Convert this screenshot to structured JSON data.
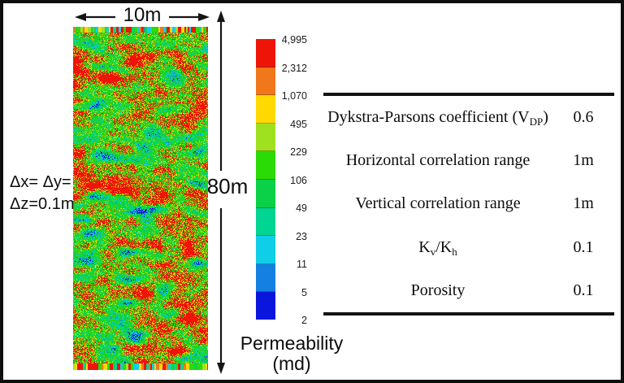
{
  "figure": {
    "width_label": "10m",
    "height_label": "80m",
    "cell_size_lines": [
      "Δx= Δy=",
      "Δz=0.1m"
    ],
    "colorbar": {
      "title_lines": [
        "Permeability",
        "(md)"
      ],
      "ticks": [
        "4,995",
        "2,312",
        "1,070",
        "495",
        "229",
        "106",
        "49",
        "23",
        "11",
        "5",
        "2"
      ],
      "segments": [
        "#ee1408",
        "#f1781a",
        "#ffd900",
        "#9fe11e",
        "#2bdb06",
        "#0bd148",
        "#00d592",
        "#0fcfe8",
        "#1480e2",
        "#0a16dd"
      ]
    },
    "table": {
      "rows": [
        {
          "parts": [
            {
              "t": "Dykstra-Parsons coefficient (V"
            },
            {
              "s": "DP"
            },
            {
              "t": ")"
            }
          ],
          "value": "0.6"
        },
        {
          "parts": [
            {
              "t": "Horizontal correlation range"
            }
          ],
          "value": "1m"
        },
        {
          "parts": [
            {
              "t": "Vertical correlation range"
            }
          ],
          "value": "1m"
        },
        {
          "parts": [
            {
              "t": "K"
            },
            {
              "s": "v"
            },
            {
              "t": "/K"
            },
            {
              "s": "h"
            }
          ],
          "value": "0.1"
        },
        {
          "parts": [
            {
              "t": "Porosity"
            }
          ],
          "value": "0.1"
        }
      ]
    },
    "heatmap": {
      "seed": 20240613,
      "levels": [
        {
          "min": 0.6,
          "color": "#ee1408"
        },
        {
          "min": 0.592,
          "color": "#f1781a"
        },
        {
          "min": 0.555,
          "color": "#ffd900"
        },
        {
          "min": 0.535,
          "color": "#9fe11e"
        },
        {
          "min": 0.425,
          "color": "#2fd60a"
        },
        {
          "min": 0.345,
          "color": "#12cd3a"
        },
        {
          "min": 0.305,
          "color": "#00d06a"
        },
        {
          "min": 0.262,
          "color": "#00d49c"
        },
        {
          "min": 0.215,
          "color": "#0fcfe8"
        },
        {
          "min": 0.173,
          "color": "#1377e0"
        },
        {
          "min": 0.0,
          "color": "#0a16dd"
        }
      ],
      "stripe_colors": [
        [
          "#ee1408",
          26
        ],
        [
          "#f1781a",
          12
        ],
        [
          "#ffd900",
          15
        ],
        [
          "#9fe11e",
          7
        ],
        [
          "#2bdb06",
          16
        ],
        [
          "#0bd148",
          7
        ],
        [
          "#00d592",
          5
        ],
        [
          "#0fcfe8",
          7
        ],
        [
          "#1480e2",
          3
        ],
        [
          "#0a16dd",
          2
        ]
      ]
    }
  },
  "chart_data": [
    {
      "type": "heatmap",
      "title": "Stochastic permeability field realization",
      "x_extent_label": "10m",
      "y_extent_label": "80m",
      "grid_cell_label": "Δx= Δy= Δz=0.1m",
      "colorbar_label": "Permeability (md)",
      "colorbar_ticks": [
        4995,
        2312,
        1070,
        495,
        229,
        106,
        49,
        23,
        11,
        5,
        2
      ],
      "scale": "logarithmic",
      "value_range": [
        2,
        4995
      ],
      "legend_position": "right of map"
    },
    {
      "type": "table",
      "rows": [
        [
          "Dykstra-Parsons coefficient (VDP)",
          "0.6"
        ],
        [
          "Horizontal correlation range",
          "1m"
        ],
        [
          "Vertical correlation range",
          "1m"
        ],
        [
          "Kv/Kh",
          "0.1"
        ],
        [
          "Porosity",
          "0.1"
        ]
      ]
    }
  ]
}
